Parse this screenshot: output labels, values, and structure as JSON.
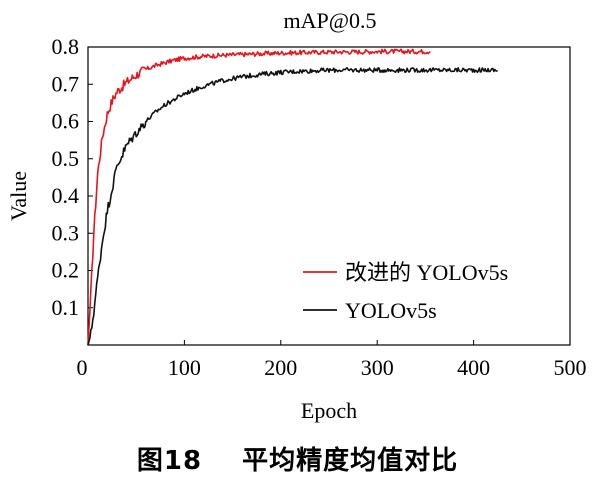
{
  "chart_data": {
    "type": "line",
    "title": "mAP@0.5",
    "xlabel": "Epoch",
    "ylabel": "Value",
    "xlim": [
      0,
      500
    ],
    "ylim": [
      0,
      0.8
    ],
    "xticks": [
      "0",
      "100",
      "200",
      "300",
      "400",
      "500"
    ],
    "yticks": [
      "0.1",
      "0.2",
      "0.3",
      "0.4",
      "0.5",
      "0.6",
      "0.7",
      "0.8"
    ],
    "grid": false,
    "legend_position": "lower-right",
    "series": [
      {
        "name": "改进的 YOLOv5s",
        "color": "#e8141b",
        "x": [
          0,
          3,
          6,
          10,
          15,
          20,
          25,
          30,
          40,
          50,
          60,
          70,
          80,
          90,
          100,
          120,
          140,
          160,
          180,
          200,
          220,
          240,
          260,
          280,
          300,
          320,
          340,
          355
        ],
        "y": [
          0,
          0.14,
          0.3,
          0.46,
          0.56,
          0.62,
          0.655,
          0.68,
          0.705,
          0.725,
          0.74,
          0.75,
          0.758,
          0.765,
          0.77,
          0.775,
          0.778,
          0.78,
          0.782,
          0.784,
          0.785,
          0.786,
          0.787,
          0.787,
          0.788,
          0.788,
          0.788,
          0.788
        ]
      },
      {
        "name": "YOLOv5s",
        "color": "#111111",
        "x": [
          0,
          3,
          6,
          10,
          15,
          20,
          25,
          30,
          40,
          50,
          60,
          70,
          80,
          90,
          100,
          120,
          140,
          160,
          180,
          200,
          220,
          240,
          260,
          280,
          300,
          320,
          340,
          360,
          380,
          400,
          420,
          425
        ],
        "y": [
          0,
          0.03,
          0.09,
          0.18,
          0.28,
          0.36,
          0.42,
          0.48,
          0.535,
          0.57,
          0.6,
          0.625,
          0.645,
          0.66,
          0.675,
          0.695,
          0.71,
          0.72,
          0.727,
          0.732,
          0.735,
          0.737,
          0.738,
          0.738,
          0.738,
          0.738,
          0.738,
          0.738,
          0.738,
          0.738,
          0.738,
          0.736
        ]
      }
    ]
  },
  "caption": {
    "figure_number": "图18",
    "text": "平均精度均值对比"
  }
}
